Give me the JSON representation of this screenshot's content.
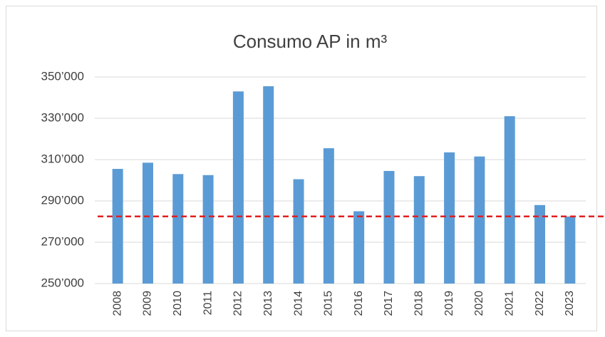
{
  "chart_data": {
    "type": "bar",
    "title": "Consumo AP in m³",
    "categories": [
      "2008",
      "2009",
      "2010",
      "2011",
      "2012",
      "2013",
      "2014",
      "2015",
      "2016",
      "2017",
      "2018",
      "2019",
      "2020",
      "2021",
      "2022",
      "2023"
    ],
    "values": [
      305500,
      308500,
      303000,
      302500,
      343000,
      345500,
      300500,
      315500,
      285000,
      304500,
      302000,
      313500,
      311500,
      331000,
      288000,
      282500
    ],
    "color": "#5b9bd5",
    "ylim": [
      250000,
      350000
    ],
    "yticks": [
      {
        "value": 250000,
        "label": "250’000"
      },
      {
        "value": 270000,
        "label": "270’000"
      },
      {
        "value": 290000,
        "label": "290’000"
      },
      {
        "value": 310000,
        "label": "310’000"
      },
      {
        "value": 330000,
        "label": "330’000"
      },
      {
        "value": 350000,
        "label": "350’000"
      }
    ],
    "grid": true,
    "reference_line": {
      "value": 282500,
      "color": "#e02020"
    }
  }
}
